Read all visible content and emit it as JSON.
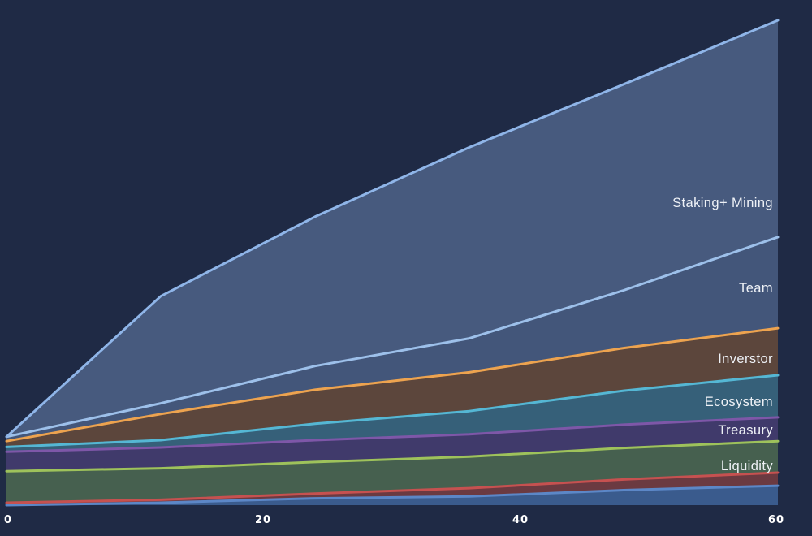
{
  "page": {
    "background_color": "#1f2a45",
    "text_color": "#eef1f6"
  },
  "chart_data": {
    "type": "area",
    "stacked": true,
    "title": "",
    "xlabel": "",
    "ylabel": "",
    "grid": false,
    "x_range": [
      0,
      60
    ],
    "y_range": [
      0,
      100
    ],
    "x": [
      0,
      12,
      24,
      36,
      48,
      60
    ],
    "x_tick_labels": [
      "0",
      "20",
      "40",
      "60"
    ],
    "x_tick_values": [
      0,
      20,
      40,
      60
    ],
    "legend_position": "labels-inside-right",
    "series": [
      {
        "key": "band1",
        "label": "",
        "fill": "#3a5b8d",
        "line": "#5c87c7",
        "values": [
          0,
          0.5,
          1.4,
          1.8,
          3.1,
          4.0
        ]
      },
      {
        "key": "band2",
        "label": "",
        "fill": "#6b3a41",
        "line": "#c65150",
        "values": [
          0.5,
          0.6,
          1.0,
          1.7,
          2.2,
          2.7
        ]
      },
      {
        "key": "liquidity",
        "label": "Liquidity",
        "fill": "#46604f",
        "line": "#9ec25b",
        "values": [
          6.5,
          6.5,
          6.5,
          6.5,
          6.5,
          6.5
        ]
      },
      {
        "key": "treasury",
        "label": "Treasury",
        "fill": "#403a6b",
        "line": "#7e57a8",
        "values": [
          4.0,
          4.3,
          4.5,
          4.6,
          4.8,
          4.9
        ]
      },
      {
        "key": "ecosystem",
        "label": "Ecosystem",
        "fill": "#366079",
        "line": "#55b7d4",
        "values": [
          1.0,
          1.5,
          3.4,
          4.8,
          7.0,
          8.7
        ]
      },
      {
        "key": "investor",
        "label": "Inverstor",
        "fill": "#5c463c",
        "line": "#eda34f",
        "values": [
          1.2,
          5.4,
          7.0,
          8.0,
          8.8,
          9.7
        ]
      },
      {
        "key": "team",
        "label": "Team",
        "fill": "#43567a",
        "line": "#9dc0ea",
        "values": [
          0.9,
          2.2,
          4.9,
          7.0,
          11.9,
          18.8
        ]
      },
      {
        "key": "staking_mining",
        "label": "Staking+ Mining",
        "fill": "#475a7e",
        "line": "#8fb5e8",
        "values": [
          0,
          22.1,
          30.8,
          39.4,
          42.5,
          44.7
        ]
      }
    ]
  }
}
